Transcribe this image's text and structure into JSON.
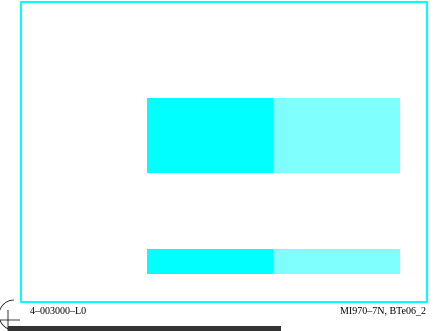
{
  "colors": {
    "frame": "#00ffff",
    "cyan": "#00ffff",
    "light_cyan": "#80ffff",
    "bar": "#333333"
  },
  "labels": {
    "left": "4–003000–L0",
    "right": "MI970–7N, BTe06_2"
  }
}
